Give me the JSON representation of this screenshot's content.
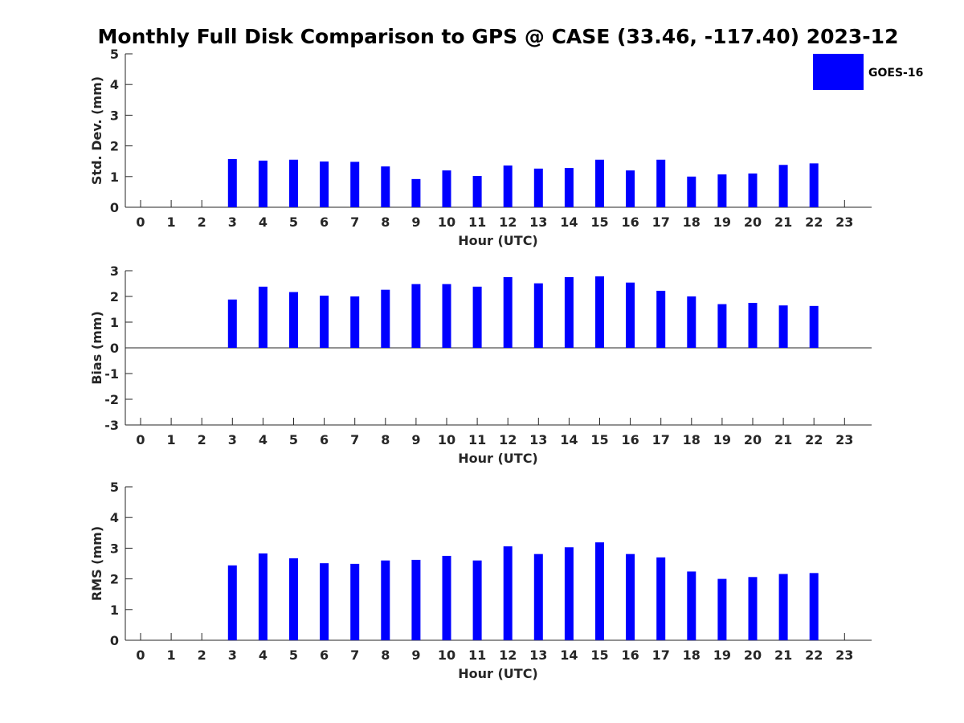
{
  "figure_title": "Monthly Full Disk Comparison to GPS @ CASE (33.46, -117.40) 2023-12",
  "legend": {
    "label": "GOES-16",
    "color": "#0000ff"
  },
  "bar_color": "#0000ff",
  "chart_data": [
    {
      "type": "bar",
      "title": "",
      "xlabel": "Hour (UTC)",
      "ylabel": "Std. Dev. (mm)",
      "ylim": [
        0,
        5
      ],
      "yticks": [
        0,
        1,
        2,
        3,
        4,
        5
      ],
      "categories": [
        "0",
        "1",
        "2",
        "3",
        "4",
        "5",
        "6",
        "7",
        "8",
        "9",
        "10",
        "11",
        "12",
        "13",
        "14",
        "15",
        "16",
        "17",
        "18",
        "19",
        "20",
        "21",
        "22",
        "23"
      ],
      "series": [
        {
          "name": "GOES-16",
          "values": [
            null,
            null,
            null,
            1.57,
            1.52,
            1.55,
            1.49,
            1.48,
            1.33,
            0.92,
            1.2,
            1.02,
            1.36,
            1.26,
            1.28,
            1.55,
            1.2,
            1.55,
            1.0,
            1.07,
            1.1,
            1.38,
            1.43,
            null
          ]
        }
      ]
    },
    {
      "type": "bar",
      "title": "",
      "xlabel": "Hour (UTC)",
      "ylabel": "Bias (mm)",
      "ylim": [
        -3,
        3
      ],
      "yticks": [
        -3,
        -2,
        -1,
        0,
        1,
        2,
        3
      ],
      "categories": [
        "0",
        "1",
        "2",
        "3",
        "4",
        "5",
        "6",
        "7",
        "8",
        "9",
        "10",
        "11",
        "12",
        "13",
        "14",
        "15",
        "16",
        "17",
        "18",
        "19",
        "20",
        "21",
        "22",
        "23"
      ],
      "series": [
        {
          "name": "GOES-16",
          "values": [
            null,
            null,
            null,
            1.88,
            2.38,
            2.17,
            2.03,
            2.0,
            2.26,
            2.48,
            2.48,
            2.38,
            2.75,
            2.51,
            2.75,
            2.78,
            2.54,
            2.22,
            2.0,
            1.7,
            1.75,
            1.65,
            1.63,
            null
          ]
        }
      ]
    },
    {
      "type": "bar",
      "title": "",
      "xlabel": "Hour (UTC)",
      "ylabel": "RMS (mm)",
      "ylim": [
        0,
        5
      ],
      "yticks": [
        0,
        1,
        2,
        3,
        4,
        5
      ],
      "categories": [
        "0",
        "1",
        "2",
        "3",
        "4",
        "5",
        "6",
        "7",
        "8",
        "9",
        "10",
        "11",
        "12",
        "13",
        "14",
        "15",
        "16",
        "17",
        "18",
        "19",
        "20",
        "21",
        "22",
        "23"
      ],
      "series": [
        {
          "name": "GOES-16",
          "values": [
            null,
            null,
            null,
            2.44,
            2.83,
            2.67,
            2.51,
            2.49,
            2.6,
            2.62,
            2.75,
            2.6,
            3.06,
            2.81,
            3.03,
            3.19,
            2.81,
            2.7,
            2.24,
            2.0,
            2.06,
            2.16,
            2.19,
            null
          ]
        }
      ]
    }
  ]
}
